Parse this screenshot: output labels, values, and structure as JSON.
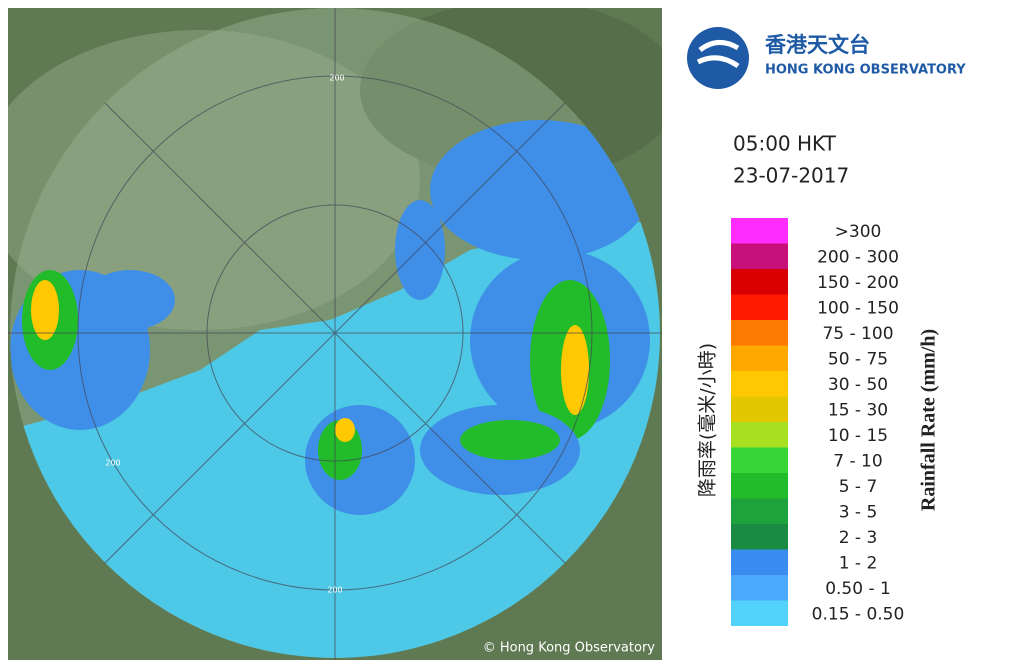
{
  "header": {
    "logo_chinese": "香港天文台",
    "logo_english": "HONG KONG OBSERVATORY"
  },
  "time": "05:00 HKT",
  "date": "23-07-2017",
  "map": {
    "range_labels": [
      "200",
      "200",
      "200"
    ],
    "copyright": "© Hong Kong Observatory"
  },
  "legend": {
    "title_chinese": "降雨率(毫米/小時)",
    "title_english": "Rainfall Rate (mm/h)",
    "items": [
      {
        "label": ">300",
        "color": "#ff2cff"
      },
      {
        "label": "200 - 300",
        "color": "#c8107a"
      },
      {
        "label": "150 - 200",
        "color": "#d80000"
      },
      {
        "label": "100 - 150",
        "color": "#ff1a00"
      },
      {
        "label": "75 - 100",
        "color": "#ff7a00"
      },
      {
        "label": "50 - 75",
        "color": "#ffa800"
      },
      {
        "label": "30 - 50",
        "color": "#ffc800"
      },
      {
        "label": "15 - 30",
        "color": "#e2c600"
      },
      {
        "label": "10 - 15",
        "color": "#a6e021"
      },
      {
        "label": "7 - 10",
        "color": "#36d636"
      },
      {
        "label": "5 - 7",
        "color": "#22bb2a"
      },
      {
        "label": "3 - 5",
        "color": "#1ea23c"
      },
      {
        "label": "2 - 3",
        "color": "#198c42"
      },
      {
        "label": "1 - 2",
        "color": "#3a8cf0"
      },
      {
        "label": "0.50 - 1",
        "color": "#4aa9fa"
      },
      {
        "label": "0.15 - 0.50",
        "color": "#50d2fa"
      }
    ]
  }
}
